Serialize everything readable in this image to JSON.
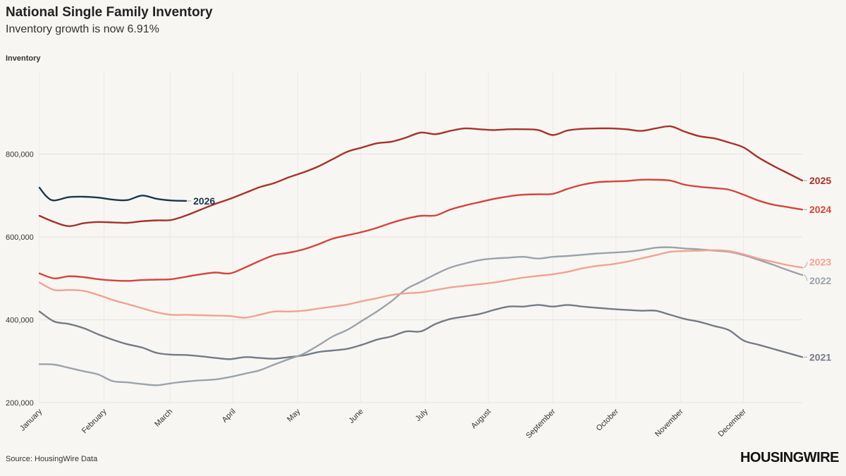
{
  "header": {
    "title": "National Single Family Inventory",
    "subtitle": "Inventory growth is now 6.91%"
  },
  "footer": {
    "source": "Source: HousingWire Data",
    "brand": "HOUSINGWIRE"
  },
  "colors": {
    "background": "#f8f6f3",
    "2021": "#737b85",
    "2022": "#9aa3ab",
    "2023": "#f2a291",
    "2024": "#d4443b",
    "2025": "#a83128",
    "2026": "#17384f"
  },
  "chart_data": {
    "type": "line",
    "title": "National Single Family Inventory",
    "subtitle": "Inventory growth is now 6.91%",
    "ylabel": "Inventory",
    "xlabel": "",
    "ylim": [
      200000,
      1000000
    ],
    "xlim": [
      1,
      53
    ],
    "y_ticks": [
      200000,
      400000,
      600000,
      800000
    ],
    "y_tick_labels": [
      "200,000",
      "400,000",
      "600,000",
      "800,000"
    ],
    "x_tick_labels": [
      "January",
      "February",
      "March",
      "April",
      "May",
      "June",
      "July",
      "August",
      "September",
      "October",
      "November",
      "December"
    ],
    "x_tick_weeks": [
      1,
      5.4,
      9.9,
      14.2,
      18.6,
      22.9,
      27.3,
      31.6,
      36,
      40.3,
      44.7,
      49
    ],
    "grid": true,
    "series": [
      {
        "name": "2021",
        "label": "2021",
        "x": [
          1,
          2,
          3,
          4,
          5,
          6,
          7,
          8,
          9,
          10,
          11,
          12,
          13,
          14,
          15,
          16,
          17,
          18,
          19,
          20,
          21,
          22,
          23,
          24,
          25,
          26,
          27,
          28,
          29,
          30,
          31,
          32,
          33,
          34,
          35,
          36,
          37,
          38,
          39,
          40,
          41,
          42,
          43,
          44,
          45,
          46,
          47,
          48,
          49,
          50,
          51,
          52,
          53
        ],
        "values": [
          420000,
          396000,
          390000,
          380000,
          365000,
          352000,
          341000,
          333000,
          320000,
          316000,
          315000,
          312000,
          308000,
          305000,
          310000,
          308000,
          306000,
          310000,
          314000,
          322000,
          326000,
          330000,
          340000,
          352000,
          360000,
          372000,
          372000,
          390000,
          402000,
          408000,
          414000,
          424000,
          432000,
          432000,
          436000,
          432000,
          436000,
          432000,
          429000,
          426000,
          424000,
          422000,
          422000,
          412000,
          402000,
          395000,
          385000,
          375000,
          350000,
          340000,
          330000,
          320000,
          310000
        ]
      },
      {
        "name": "2022",
        "label": "2022",
        "x": [
          1,
          2,
          3,
          4,
          5,
          6,
          7,
          8,
          9,
          10,
          11,
          12,
          13,
          14,
          15,
          16,
          17,
          18,
          19,
          20,
          21,
          22,
          23,
          24,
          25,
          26,
          27,
          28,
          29,
          30,
          31,
          32,
          33,
          34,
          35,
          36,
          37,
          38,
          39,
          40,
          41,
          42,
          43,
          44,
          45,
          46,
          47,
          48,
          49,
          50,
          51,
          52,
          53
        ],
        "values": [
          293000,
          292000,
          284000,
          276000,
          268000,
          252000,
          249000,
          245000,
          242000,
          247000,
          251000,
          254000,
          256000,
          262000,
          270000,
          278000,
          292000,
          305000,
          318000,
          338000,
          360000,
          376000,
          398000,
          420000,
          445000,
          474000,
          492000,
          510000,
          526000,
          536000,
          544000,
          548000,
          550000,
          552000,
          548000,
          552000,
          554000,
          557000,
          560000,
          562000,
          564000,
          568000,
          574000,
          575000,
          572000,
          570000,
          567000,
          564000,
          556000,
          545000,
          533000,
          520000,
          508000
        ]
      },
      {
        "name": "2023",
        "label": "2023",
        "x": [
          1,
          2,
          3,
          4,
          5,
          6,
          7,
          8,
          9,
          10,
          11,
          12,
          13,
          14,
          15,
          16,
          17,
          18,
          19,
          20,
          21,
          22,
          23,
          24,
          25,
          26,
          27,
          28,
          29,
          30,
          31,
          32,
          33,
          34,
          35,
          36,
          37,
          38,
          39,
          40,
          41,
          42,
          43,
          44,
          45,
          46,
          47,
          48,
          49,
          50,
          51,
          52,
          53
        ],
        "values": [
          490000,
          472000,
          472000,
          470000,
          460000,
          448000,
          438000,
          428000,
          418000,
          412000,
          412000,
          411000,
          410000,
          409000,
          405000,
          412000,
          420000,
          420000,
          422000,
          427000,
          432000,
          437000,
          445000,
          452000,
          460000,
          464000,
          466000,
          472000,
          478000,
          482000,
          486000,
          490000,
          496000,
          502000,
          506000,
          510000,
          516000,
          524000,
          530000,
          534000,
          540000,
          548000,
          556000,
          564000,
          566000,
          567000,
          568000,
          566000,
          558000,
          548000,
          540000,
          532000,
          526000
        ]
      },
      {
        "name": "2024",
        "label": "2024",
        "x": [
          1,
          2,
          3,
          4,
          5,
          6,
          7,
          8,
          9,
          10,
          11,
          12,
          13,
          14,
          15,
          16,
          17,
          18,
          19,
          20,
          21,
          22,
          23,
          24,
          25,
          26,
          27,
          28,
          29,
          30,
          31,
          32,
          33,
          34,
          35,
          36,
          37,
          38,
          39,
          40,
          41,
          42,
          43,
          44,
          45,
          46,
          47,
          48,
          49,
          50,
          51,
          52,
          53
        ],
        "values": [
          512000,
          500000,
          505000,
          503000,
          498000,
          495000,
          494000,
          496000,
          497000,
          498000,
          504000,
          510000,
          514000,
          512000,
          526000,
          542000,
          556000,
          562000,
          570000,
          582000,
          596000,
          604000,
          612000,
          622000,
          634000,
          644000,
          651000,
          652000,
          666000,
          676000,
          684000,
          692000,
          698000,
          702000,
          703000,
          704000,
          716000,
          726000,
          732000,
          734000,
          735000,
          738000,
          738000,
          736000,
          726000,
          721000,
          718000,
          714000,
          702000,
          688000,
          678000,
          672000,
          666000
        ]
      },
      {
        "name": "2025",
        "label": "2025",
        "x": [
          1,
          2,
          3,
          4,
          5,
          6,
          7,
          8,
          9,
          10,
          11,
          12,
          13,
          14,
          15,
          16,
          17,
          18,
          19,
          20,
          21,
          22,
          23,
          24,
          25,
          26,
          27,
          28,
          29,
          30,
          31,
          32,
          33,
          34,
          35,
          36,
          37,
          38,
          39,
          40,
          41,
          42,
          43,
          44,
          45,
          46,
          47,
          48,
          49,
          50,
          51,
          52,
          53
        ],
        "values": [
          651000,
          636000,
          626000,
          633000,
          636000,
          635000,
          634000,
          638000,
          640000,
          641000,
          652000,
          666000,
          680000,
          692000,
          706000,
          720000,
          730000,
          744000,
          756000,
          770000,
          788000,
          806000,
          816000,
          826000,
          830000,
          840000,
          852000,
          848000,
          856000,
          862000,
          860000,
          858000,
          860000,
          860000,
          858000,
          846000,
          857000,
          861000,
          862000,
          862000,
          860000,
          856000,
          862000,
          867000,
          854000,
          843000,
          838000,
          828000,
          816000,
          792000,
          772000,
          754000,
          736000
        ]
      },
      {
        "name": "2026",
        "label": "2026",
        "x": [
          1,
          1.5,
          2,
          3,
          4,
          5,
          6,
          7,
          8,
          9,
          10,
          11
        ],
        "values": [
          719000,
          697000,
          688000,
          696000,
          697000,
          695000,
          690000,
          689000,
          700000,
          692000,
          688000,
          687000
        ]
      }
    ]
  }
}
